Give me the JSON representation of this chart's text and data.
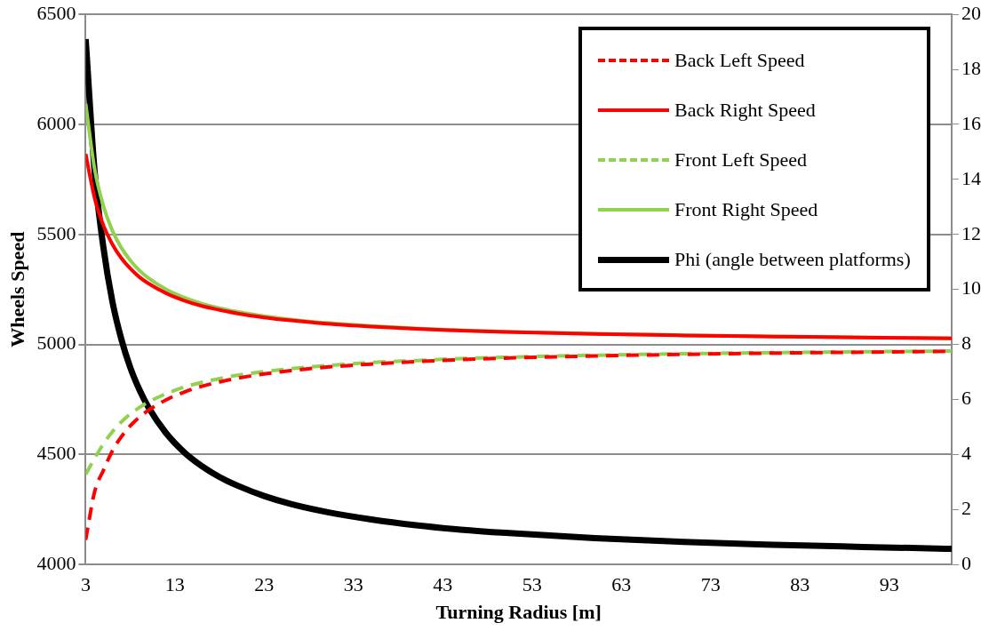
{
  "chart_data": {
    "type": "line",
    "xlabel": "Turning Radius [m]",
    "ylabel": "Wheels Speed",
    "x": [
      3,
      4,
      5,
      6,
      7,
      8,
      9,
      10,
      12,
      14,
      16,
      18,
      20,
      23,
      26,
      30,
      35,
      40,
      45,
      50,
      60,
      70,
      80,
      90,
      100
    ],
    "xlim": [
      3,
      100
    ],
    "xticks": [
      3,
      13,
      23,
      33,
      43,
      53,
      63,
      73,
      83,
      93
    ],
    "ylim": [
      4000,
      6500
    ],
    "yticks": [
      4000,
      4500,
      5000,
      5500,
      6000,
      6500
    ],
    "y2lim": [
      0,
      20
    ],
    "y2ticks": [
      0,
      2,
      4,
      6,
      8,
      10,
      12,
      14,
      16,
      18,
      20
    ],
    "grid": "y",
    "legend": "top right",
    "marker": "none",
    "series": [
      {
        "name": "Back Left Speed",
        "color": "#ff0000",
        "line_style": "dashed",
        "values": [
          4112,
          4330,
          4429,
          4517,
          4581,
          4630,
          4669,
          4700,
          4748,
          4783,
          4810,
          4830,
          4847,
          4866,
          4881,
          4897,
          4911,
          4922,
          4931,
          4938,
          4948,
          4955,
          4961,
          4965,
          4969
        ]
      },
      {
        "name": "Back Right Speed",
        "color": "#ff0000",
        "line_style": "solid",
        "values": [
          5866,
          5666,
          5540,
          5455,
          5392,
          5345,
          5307,
          5278,
          5233,
          5200,
          5175,
          5157,
          5141,
          5123,
          5109,
          5094,
          5081,
          5071,
          5063,
          5057,
          5048,
          5041,
          5036,
          5032,
          5028
        ]
      },
      {
        "name": "Front Left Speed",
        "color": "#92d050",
        "line_style": "dashed",
        "values": [
          4410,
          4482,
          4549,
          4604,
          4648,
          4684,
          4713,
          4738,
          4776,
          4806,
          4828,
          4845,
          4860,
          4877,
          4890,
          4904,
          4918,
          4927,
          4936,
          4942,
          4951,
          4958,
          4963,
          4967,
          4970
        ]
      },
      {
        "name": "Front Right Speed",
        "color": "#92d050",
        "line_style": "solid",
        "values": [
          6094,
          5798,
          5628,
          5517,
          5439,
          5382,
          5337,
          5303,
          5251,
          5214,
          5186,
          5165,
          5149,
          5129,
          5114,
          5098,
          5084,
          5073,
          5065,
          5058,
          5049,
          5042,
          5037,
          5032,
          5029
        ]
      },
      {
        "name": "Phi (angle between platforms)",
        "color": "#000000",
        "line_style": "solid",
        "axis": "y2",
        "values": [
          19.1,
          14.3,
          11.5,
          9.55,
          8.19,
          7.16,
          6.37,
          5.73,
          4.78,
          4.09,
          3.58,
          3.18,
          2.87,
          2.49,
          2.2,
          1.91,
          1.64,
          1.43,
          1.27,
          1.15,
          0.96,
          0.82,
          0.72,
          0.64,
          0.57
        ]
      }
    ]
  }
}
